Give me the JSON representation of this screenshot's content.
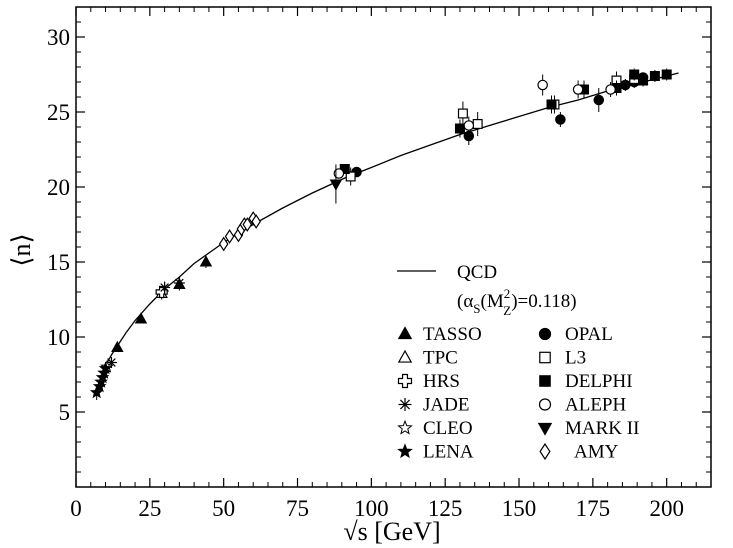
{
  "chart_data": {
    "type": "scatter",
    "title": "",
    "xlabel": "√s [GeV]",
    "ylabel": "⟨n⟩",
    "xlim": [
      0,
      215
    ],
    "ylim": [
      0,
      32
    ],
    "x_ticks": [
      0,
      25,
      50,
      75,
      100,
      125,
      150,
      175,
      200
    ],
    "y_ticks": [
      5,
      10,
      15,
      20,
      25,
      30
    ],
    "x_tick_labels": [
      "0",
      "25",
      "50",
      "75",
      "100",
      "125",
      "150",
      "175",
      "200"
    ],
    "y_tick_labels": [
      "5",
      "10",
      "15",
      "20",
      "25",
      "30"
    ],
    "grid": false,
    "legend_position": "bottom-right",
    "curve": {
      "name": "QCD",
      "annotation": "αS(MZ2)=0.118",
      "annotation_parts": [
        "(α",
        "S",
        "(M",
        "2",
        "Z",
        ")=0.118)"
      ],
      "x": [
        7,
        8,
        9,
        10,
        12,
        14,
        17,
        20,
        25,
        30,
        35,
        40,
        45,
        50,
        55,
        60,
        70,
        80,
        91,
        100,
        110,
        120,
        130,
        140,
        150,
        160,
        170,
        180,
        190,
        200,
        204
      ],
      "y": [
        6.6,
        7.0,
        7.6,
        8.1,
        8.8,
        9.4,
        10.3,
        11.1,
        12.2,
        13.2,
        14.0,
        14.9,
        15.6,
        16.3,
        16.9,
        17.5,
        18.6,
        19.6,
        20.6,
        21.3,
        22.1,
        22.8,
        23.5,
        24.1,
        24.7,
        25.3,
        25.8,
        26.4,
        26.9,
        27.4,
        27.6
      ]
    },
    "series": [
      {
        "name": "TASSO",
        "marker": "triangle-filled",
        "x": [
          14,
          22,
          35,
          44
        ],
        "y": [
          9.3,
          11.2,
          13.5,
          15.0
        ],
        "err": [
          0.3,
          0.3,
          0.4,
          0.4
        ]
      },
      {
        "name": "TPC",
        "marker": "triangle-open",
        "x": [
          29
        ],
        "y": [
          12.9
        ],
        "err": [
          0.4
        ]
      },
      {
        "name": "HRS",
        "marker": "cross-open",
        "x": [
          29
        ],
        "y": [
          13.0
        ],
        "err": [
          0.3
        ]
      },
      {
        "name": "JADE",
        "marker": "asterisk",
        "x": [
          12,
          30,
          35
        ],
        "y": [
          8.3,
          13.3,
          13.6
        ],
        "err": [
          0.3,
          0.4,
          0.4
        ]
      },
      {
        "name": "CLEO",
        "marker": "star-open",
        "x": [
          10.5
        ],
        "y": [
          8.0
        ],
        "err": [
          0.2
        ]
      },
      {
        "name": "LENA",
        "marker": "star-filled",
        "x": [
          7,
          8,
          8.5,
          9,
          9.5,
          10
        ],
        "y": [
          6.3,
          6.7,
          7.0,
          7.3,
          7.6,
          7.9
        ],
        "err": [
          0.5,
          0.3,
          0.3,
          0.3,
          0.3,
          0.3
        ]
      },
      {
        "name": "OPAL",
        "marker": "circle-filled",
        "x": [
          95,
          133,
          164,
          177,
          186,
          189,
          192
        ],
        "y": [
          21.0,
          23.4,
          24.5,
          25.8,
          26.8,
          27.0,
          27.3
        ],
        "err": [
          0.3,
          0.6,
          0.5,
          0.8,
          0.4,
          0.4,
          0.3
        ]
      },
      {
        "name": "L3",
        "marker": "square-open",
        "x": [
          93,
          131,
          136,
          162,
          172,
          183,
          189
        ],
        "y": [
          20.7,
          24.9,
          24.2,
          25.5,
          26.5,
          27.1,
          27.2
        ],
        "err": [
          0.6,
          0.8,
          0.8,
          0.6,
          0.6,
          0.6,
          0.5
        ]
      },
      {
        "name": "DELPHI",
        "marker": "square-filled",
        "x": [
          91,
          130,
          161,
          172,
          183,
          189,
          192,
          196,
          200
        ],
        "y": [
          21.2,
          23.9,
          25.5,
          26.5,
          26.6,
          27.5,
          27.1,
          27.4,
          27.5
        ],
        "err": [
          0.2,
          0.6,
          0.6,
          0.6,
          0.5,
          0.4,
          0.4,
          0.4,
          0.4
        ]
      },
      {
        "name": "ALEPH",
        "marker": "circle-open",
        "x": [
          89,
          133,
          158,
          170,
          181
        ],
        "y": [
          20.9,
          24.1,
          26.8,
          26.5,
          26.5
        ],
        "err": [
          0.3,
          0.6,
          0.7,
          0.6,
          0.5
        ]
      },
      {
        "name": "MARK II",
        "marker": "triangle-down-filled",
        "x": [
          88
        ],
        "y": [
          20.2
        ],
        "err": [
          1.3
        ]
      },
      {
        "name": "AMY",
        "marker": "diamond-open",
        "x": [
          50,
          52,
          55,
          56,
          57,
          58,
          60,
          61
        ],
        "y": [
          16.2,
          16.7,
          16.8,
          17.2,
          17.5,
          17.5,
          17.9,
          17.7
        ],
        "err": [
          0.4,
          0.4,
          0.4,
          0.4,
          0.4,
          0.4,
          0.4,
          0.4
        ]
      }
    ]
  }
}
